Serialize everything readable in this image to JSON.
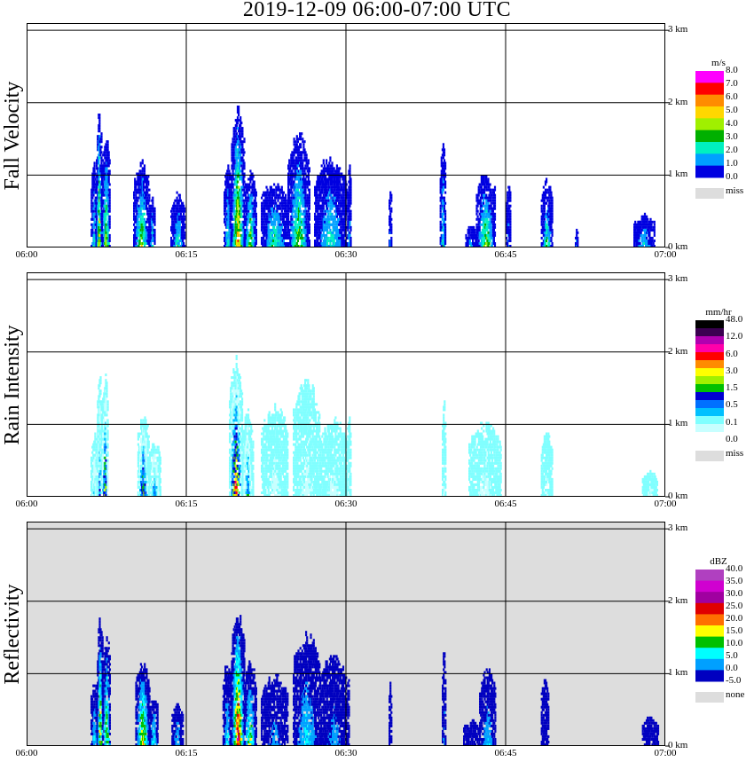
{
  "title": "2019-12-09   06:00-07:00 UTC",
  "chart_data": [
    {
      "type": "heatmap",
      "ylabel": "Fall Velocity",
      "x_ticks": [
        "06:00",
        "06:15",
        "06:30",
        "06:45",
        "07:00"
      ],
      "y_ticks": [
        "0 km",
        "1 km",
        "2 km",
        "3 km"
      ],
      "ylim_km": [
        0,
        3.1
      ],
      "background": "#ffffff",
      "colorbar": {
        "unit": "m/s",
        "labels": [
          "8.0",
          "7.0",
          "6.0",
          "5.0",
          "4.0",
          "3.0",
          "2.0",
          "1.0",
          "0.0"
        ],
        "colors": [
          "#ff00ff",
          "#ff0000",
          "#ff8c00",
          "#ffd700",
          "#a0f000",
          "#00b000",
          "#00f0c0",
          "#00a0ff",
          "#0000e0"
        ],
        "missing_label": "miss",
        "missing_color": "#dddddd"
      },
      "echoes": [
        {
          "start": 6.02,
          "end": 6.5,
          "top_km": 1.25,
          "peak": 0.3
        },
        {
          "start": 6.5,
          "end": 7.0,
          "top_km": 1.9,
          "peak": 0.6
        },
        {
          "start": 7.0,
          "end": 7.8,
          "top_km": 1.55,
          "peak": 0.5
        },
        {
          "start": 10.0,
          "end": 11.5,
          "top_km": 1.2,
          "peak": 0.45
        },
        {
          "start": 11.5,
          "end": 12.0,
          "top_km": 0.7,
          "peak": 0.3
        },
        {
          "start": 13.5,
          "end": 14.8,
          "top_km": 0.75,
          "peak": 0.3
        },
        {
          "start": 18.5,
          "end": 19.2,
          "top_km": 1.2,
          "peak": 0.3
        },
        {
          "start": 19.2,
          "end": 20.4,
          "top_km": 1.95,
          "peak": 0.7
        },
        {
          "start": 20.4,
          "end": 21.5,
          "top_km": 1.1,
          "peak": 0.45
        },
        {
          "start": 22.0,
          "end": 24.5,
          "top_km": 0.95,
          "peak": 0.35
        },
        {
          "start": 24.5,
          "end": 26.5,
          "top_km": 1.6,
          "peak": 0.45
        },
        {
          "start": 27.0,
          "end": 30.0,
          "top_km": 1.3,
          "peak": 0.3
        },
        {
          "start": 30.1,
          "end": 30.4,
          "top_km": 1.2,
          "peak": 0.2
        },
        {
          "start": 34.0,
          "end": 34.2,
          "top_km": 0.95,
          "peak": 0.15
        },
        {
          "start": 38.8,
          "end": 39.3,
          "top_km": 1.45,
          "peak": 0.3
        },
        {
          "start": 41.2,
          "end": 42.2,
          "top_km": 0.3,
          "peak": 0.2
        },
        {
          "start": 42.2,
          "end": 44.0,
          "top_km": 1.05,
          "peak": 0.45
        },
        {
          "start": 45.0,
          "end": 45.4,
          "top_km": 0.95,
          "peak": 0.15
        },
        {
          "start": 48.3,
          "end": 49.3,
          "top_km": 0.95,
          "peak": 0.35
        },
        {
          "start": 51.5,
          "end": 51.7,
          "top_km": 0.25,
          "peak": 0.2
        },
        {
          "start": 57.0,
          "end": 58.9,
          "top_km": 0.45,
          "peak": 0.25
        }
      ]
    },
    {
      "type": "heatmap",
      "ylabel": "Rain Intensity",
      "x_ticks": [
        "06:00",
        "06:15",
        "06:30",
        "06:45",
        "07:00"
      ],
      "y_ticks": [
        "0 km",
        "1 km",
        "2 km",
        "3 km"
      ],
      "ylim_km": [
        0,
        3.1
      ],
      "background": "#ffffff",
      "colorbar": {
        "unit": "mm/hr",
        "labels": [
          "48.0",
          "12.0",
          "6.0",
          "3.0",
          "1.5",
          "0.5",
          "0.1",
          "0.0"
        ],
        "colors": [
          "#000000",
          "#3a0050",
          "#b000b0",
          "#ff00aa",
          "#ff0000",
          "#ff8c00",
          "#ffff00",
          "#a0f000",
          "#00c000",
          "#0000d0",
          "#0070ff",
          "#00c0ff",
          "#80ffff",
          "#c8ffff",
          "#ffffff"
        ],
        "missing_label": "miss",
        "missing_color": "#dddddd"
      },
      "echoes": [
        {
          "start": 6.0,
          "end": 6.6,
          "top_km": 0.9,
          "peak": 0.2
        },
        {
          "start": 6.6,
          "end": 7.0,
          "top_km": 1.85,
          "peak": 0.35
        },
        {
          "start": 7.0,
          "end": 7.6,
          "top_km": 1.75,
          "peak": 0.55
        },
        {
          "start": 10.4,
          "end": 11.4,
          "top_km": 1.2,
          "peak": 0.5
        },
        {
          "start": 11.4,
          "end": 12.5,
          "top_km": 0.8,
          "peak": 0.3
        },
        {
          "start": 19.0,
          "end": 20.2,
          "top_km": 1.95,
          "peak": 0.7
        },
        {
          "start": 20.2,
          "end": 21.2,
          "top_km": 1.2,
          "peak": 0.35
        },
        {
          "start": 22.0,
          "end": 24.5,
          "top_km": 1.3,
          "peak": 0.1
        },
        {
          "start": 25.0,
          "end": 27.5,
          "top_km": 1.65,
          "peak": 0.1
        },
        {
          "start": 27.5,
          "end": 30.0,
          "top_km": 1.1,
          "peak": 0.1
        },
        {
          "start": 30.0,
          "end": 30.4,
          "top_km": 1.2,
          "peak": 0.1
        },
        {
          "start": 39.0,
          "end": 39.3,
          "top_km": 1.4,
          "peak": 0.1
        },
        {
          "start": 41.5,
          "end": 44.5,
          "top_km": 1.05,
          "peak": 0.1
        },
        {
          "start": 48.3,
          "end": 49.3,
          "top_km": 0.9,
          "peak": 0.1
        },
        {
          "start": 57.8,
          "end": 59.2,
          "top_km": 0.35,
          "peak": 0.1
        }
      ]
    },
    {
      "type": "heatmap",
      "ylabel": "Reflectivity",
      "x_ticks": [
        "06:00",
        "06:15",
        "06:30",
        "06:45",
        "07:00"
      ],
      "y_ticks": [
        "0 km",
        "1 km",
        "2 km",
        "3 km"
      ],
      "ylim_km": [
        0,
        3.1
      ],
      "background": "#dddddd",
      "colorbar": {
        "unit": "dBZ",
        "labels": [
          "40.0",
          "35.0",
          "30.0",
          "25.0",
          "20.0",
          "15.0",
          "10.0",
          "5.0",
          "0.0",
          "-5.0"
        ],
        "colors": [
          "#b040c0",
          "#d000d0",
          "#a000a0",
          "#e00000",
          "#ff7000",
          "#ffff00",
          "#00c000",
          "#00ffff",
          "#00a0ff",
          "#0000c0"
        ],
        "missing_label": "none",
        "missing_color": "#dddddd"
      },
      "echoes": [
        {
          "start": 6.0,
          "end": 6.6,
          "top_km": 1.0,
          "peak": 0.25
        },
        {
          "start": 6.6,
          "end": 7.1,
          "top_km": 1.85,
          "peak": 0.55
        },
        {
          "start": 7.1,
          "end": 7.8,
          "top_km": 1.55,
          "peak": 0.45
        },
        {
          "start": 10.2,
          "end": 11.5,
          "top_km": 1.2,
          "peak": 0.55
        },
        {
          "start": 11.5,
          "end": 12.3,
          "top_km": 0.7,
          "peak": 0.3
        },
        {
          "start": 13.6,
          "end": 14.6,
          "top_km": 0.6,
          "peak": 0.2
        },
        {
          "start": 18.4,
          "end": 19.2,
          "top_km": 1.2,
          "peak": 0.25
        },
        {
          "start": 19.2,
          "end": 20.4,
          "top_km": 1.95,
          "peak": 0.75
        },
        {
          "start": 20.4,
          "end": 21.5,
          "top_km": 1.2,
          "peak": 0.4
        },
        {
          "start": 22.0,
          "end": 24.5,
          "top_km": 1.0,
          "peak": 0.15
        },
        {
          "start": 25.0,
          "end": 27.5,
          "top_km": 1.6,
          "peak": 0.25
        },
        {
          "start": 27.5,
          "end": 30.2,
          "top_km": 1.3,
          "peak": 0.15
        },
        {
          "start": 34.0,
          "end": 34.2,
          "top_km": 0.95,
          "peak": 0.05
        },
        {
          "start": 39.0,
          "end": 39.3,
          "top_km": 1.4,
          "peak": 0.15
        },
        {
          "start": 41.0,
          "end": 42.5,
          "top_km": 0.35,
          "peak": 0.05
        },
        {
          "start": 42.5,
          "end": 44.0,
          "top_km": 1.1,
          "peak": 0.2
        },
        {
          "start": 48.3,
          "end": 49.0,
          "top_km": 0.95,
          "peak": 0.05
        },
        {
          "start": 57.8,
          "end": 59.3,
          "top_km": 0.4,
          "peak": 0.05
        }
      ]
    }
  ]
}
